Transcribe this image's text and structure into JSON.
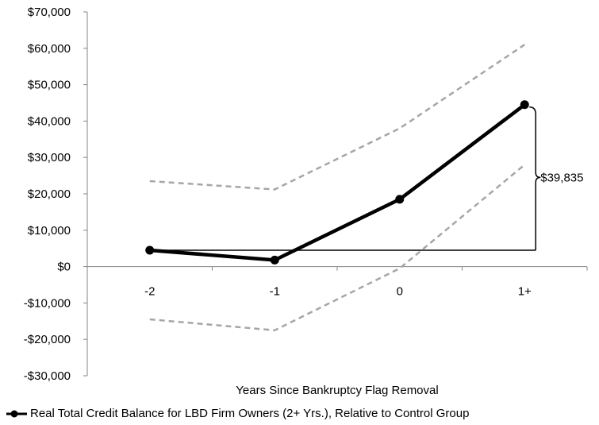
{
  "chart_data": {
    "type": "line",
    "xlabel": "Years Since Bankruptcy Flag Removal",
    "ylabel": "",
    "categories": [
      "-2",
      "-1",
      "0",
      "1+"
    ],
    "ylim": [
      -30000,
      70000
    ],
    "yticks": [
      70000,
      60000,
      50000,
      40000,
      30000,
      20000,
      10000,
      0,
      -10000,
      -20000,
      -30000
    ],
    "ytick_labels": [
      "$70,000",
      "$60,000",
      "$50,000",
      "$40,000",
      "$30,000",
      "$20,000",
      "$10,000",
      "$0",
      "-$10,000",
      "-$20,000",
      "-$30,000"
    ],
    "grid": false,
    "legend_position": "bottom",
    "series": [
      {
        "name": "Real Total Credit Balance for LBD Firm Owners (2+ Yrs.), Relative to Control Group",
        "values": [
          4500,
          1800,
          18500,
          44500
        ],
        "color": "#000000",
        "style": "solid-markers"
      },
      {
        "name": "",
        "values": [
          23500,
          21200,
          38000,
          61000
        ],
        "color": "#a6a6a6",
        "style": "dashed"
      },
      {
        "name": "",
        "values": [
          -14500,
          -17500,
          -500,
          28000
        ],
        "color": "#a6a6a6",
        "style": "dashed"
      }
    ],
    "baseline_value": 4500,
    "annotation": {
      "text": "$39,835",
      "from": 4500,
      "to": 44500,
      "category": "1+"
    }
  }
}
